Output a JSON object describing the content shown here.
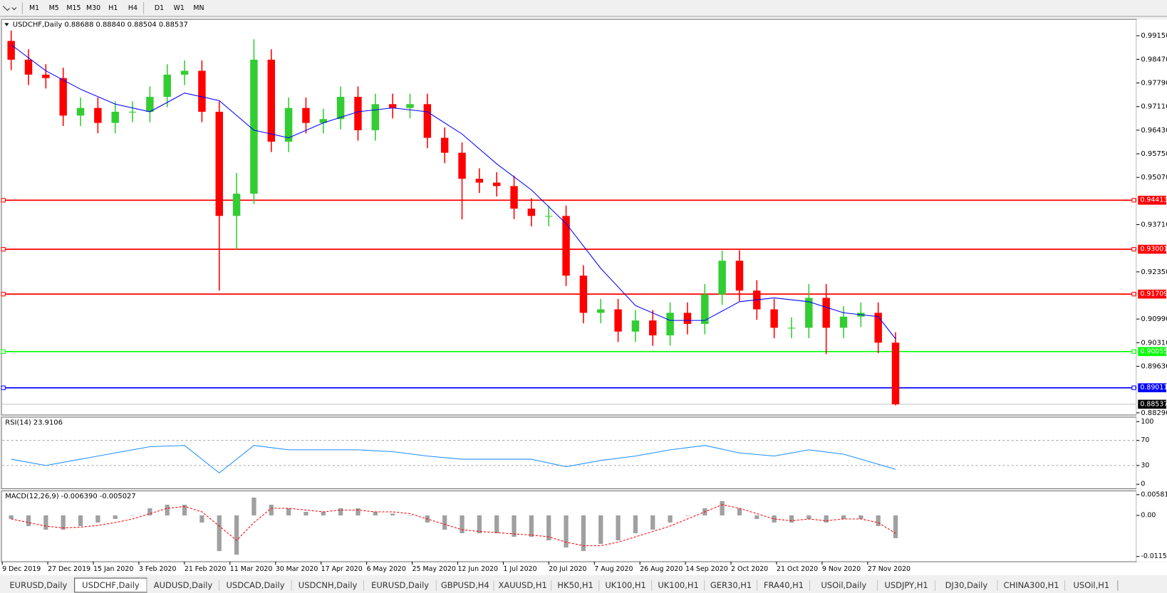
{
  "toolbar": [
    "M1",
    "M5",
    "M15",
    "M30",
    "H1",
    "H4",
    "D1",
    "W1",
    "MN"
  ],
  "tabs": [
    "EURUSD,Daily",
    "USDCHF,Daily",
    "AUDUSD,Daily",
    "USDCAD,Daily",
    "USDCNH,Daily",
    "EURUSD,Daily",
    "GBPUSD,H4",
    "XAUUSD,H1",
    "HK50,H1",
    "UK100,H1",
    "UK100,H1",
    "GER30,H1",
    "FRA40,H1",
    "USOil,Daily",
    "USDJPY,H1",
    "DJ30,Daily",
    "CHINA300,H1",
    "USOil,H1"
  ],
  "active_tab": 1,
  "chart_data": {
    "type": "candlestick",
    "title": "USDCHF,Daily  0.88688 0.88840 0.88504 0.88537",
    "up_color": "#32cd32",
    "down_color": "#ff0000",
    "open": [
      0.99,
      0.9846,
      0.9803,
      0.9793,
      0.9685,
      0.9707,
      0.9664,
      0.9696,
      0.9696,
      0.9739,
      0.9803,
      0.9814,
      0.9696,
      0.9396,
      0.946,
      0.9846,
      0.961,
      0.9707,
      0.9664,
      0.9675,
      0.9739,
      0.9643,
      0.9718,
      0.9707,
      0.9718,
      0.9621,
      0.9578,
      0.9503,
      0.9492,
      0.9482,
      0.9417,
      0.9396,
      0.9396,
      0.9224,
      0.9117,
      0.9127,
      0.9063,
      0.9095,
      0.9052,
      0.9117,
      0.9085,
      0.917,
      0.9267,
      0.9181,
      0.9127,
      0.9074,
      0.9074,
      0.916,
      0.9074,
      0.9106,
      0.9117,
      0.9031
    ],
    "high": [
      0.993,
      0.9876,
      0.9833,
      0.9823,
      0.9737,
      0.9737,
      0.9726,
      0.9726,
      0.9769,
      0.9833,
      0.9844,
      0.9844,
      0.9726,
      0.952,
      0.9905,
      0.9876,
      0.9737,
      0.9737,
      0.9705,
      0.9769,
      0.9769,
      0.9748,
      0.9748,
      0.9748,
      0.9748,
      0.9651,
      0.9608,
      0.9533,
      0.9522,
      0.9512,
      0.9447,
      0.9426,
      0.9426,
      0.9254,
      0.9157,
      0.9157,
      0.9125,
      0.9125,
      0.9147,
      0.9147,
      0.92,
      0.9296,
      0.9297,
      0.9211,
      0.9157,
      0.9104,
      0.92,
      0.92,
      0.9136,
      0.9147,
      0.9147,
      0.9061
    ],
    "low": [
      0.9816,
      0.9773,
      0.9763,
      0.9655,
      0.9655,
      0.9634,
      0.9634,
      0.9666,
      0.9666,
      0.9709,
      0.9773,
      0.9666,
      0.9181,
      0.93,
      0.943,
      0.958,
      0.958,
      0.9634,
      0.9634,
      0.9645,
      0.9613,
      0.9613,
      0.9677,
      0.9677,
      0.9591,
      0.9548,
      0.9386,
      0.9462,
      0.9452,
      0.9387,
      0.9366,
      0.9366,
      0.9194,
      0.9087,
      0.9087,
      0.9033,
      0.9033,
      0.9022,
      0.9022,
      0.9055,
      0.9055,
      0.914,
      0.9151,
      0.9097,
      0.9044,
      0.9044,
      0.9044,
      0.8998,
      0.9044,
      0.9076,
      0.9001,
      0.88504
    ],
    "close": [
      0.9846,
      0.9803,
      0.9793,
      0.9685,
      0.9707,
      0.9664,
      0.9696,
      0.9696,
      0.9739,
      0.9803,
      0.9814,
      0.9696,
      0.9396,
      0.946,
      0.9846,
      0.961,
      0.9707,
      0.9664,
      0.9675,
      0.9739,
      0.9643,
      0.9718,
      0.9707,
      0.9718,
      0.9621,
      0.9578,
      0.9503,
      0.9492,
      0.9482,
      0.9417,
      0.9396,
      0.9396,
      0.9224,
      0.9117,
      0.9127,
      0.9063,
      0.9095,
      0.9052,
      0.9117,
      0.9085,
      0.917,
      0.9267,
      0.9181,
      0.9127,
      0.9074,
      0.9074,
      0.916,
      0.9074,
      0.9106,
      0.9117,
      0.9031,
      0.88537
    ],
    "ma": {
      "color": "#0000ff",
      "x": [
        0,
        2,
        4,
        6,
        8,
        10,
        12,
        14,
        16,
        18,
        20,
        22,
        24,
        26,
        28,
        30,
        32,
        34,
        36,
        38,
        40,
        42,
        44,
        46,
        48,
        50,
        51
      ],
      "values": [
        0.9889,
        0.9814,
        0.9761,
        0.9718,
        0.9696,
        0.975,
        0.9728,
        0.9643,
        0.9621,
        0.9664,
        0.9696,
        0.9707,
        0.9696,
        0.9632,
        0.9546,
        0.9471,
        0.9374,
        0.9245,
        0.9138,
        0.9095,
        0.9095,
        0.9149,
        0.916,
        0.9149,
        0.9117,
        0.9106,
        0.9042
      ]
    },
    "levels": [
      {
        "value": 0.94413,
        "color": "#ff0000"
      },
      {
        "value": 0.93001,
        "color": "#ff0000"
      },
      {
        "value": 0.91709,
        "color": "#ff0000"
      },
      {
        "value": 0.90055,
        "color": "#00ff00"
      },
      {
        "value": 0.89011,
        "color": "#0000ff"
      }
    ],
    "last_price": 0.88537,
    "ylim": [
      0.8825,
      0.996
    ],
    "yticks": [
      {
        "value": 0.9915,
        "label": "0.99150"
      },
      {
        "value": 0.9847,
        "label": "0.98470"
      },
      {
        "value": 0.9779,
        "label": "0.97790"
      },
      {
        "value": 0.9711,
        "label": "0.97110"
      },
      {
        "value": 0.9643,
        "label": "0.96430"
      },
      {
        "value": 0.9575,
        "label": "0.95750"
      },
      {
        "value": 0.9507,
        "label": "0.95070"
      },
      {
        "value": 0.9371,
        "label": "0.93710"
      },
      {
        "value": 0.9235,
        "label": "0.92350"
      },
      {
        "value": 0.9099,
        "label": "0.90990"
      },
      {
        "value": 0.9031,
        "label": "0.90310"
      },
      {
        "value": 0.8963,
        "label": "0.89630"
      },
      {
        "value": 0.8829,
        "label": "0.88290"
      }
    ],
    "x_labels": [
      "9 Dec 2019",
      "27 Dec 2019",
      "15 Jan 2020",
      "3 Feb 2020",
      "21 Feb 2020",
      "11 Mar 2020",
      "30 Mar 2020",
      "17 Apr 2020",
      "6 May 2020",
      "25 May 2020",
      "12 Jun 2020",
      "1 Jul 2020",
      "20 Jul 2020",
      "7 Aug 2020",
      "26 Aug 2020",
      "14 Sep 2020",
      "2 Oct 2020",
      "21 Oct 2020",
      "9 Nov 2020",
      "27 Nov 2020"
    ],
    "rsi": {
      "title": "RSI(14) 23.9106",
      "color": "#1e90ff",
      "ylim": [
        0,
        100
      ],
      "yticks": [
        0,
        30,
        70,
        100
      ],
      "x": [
        0,
        2,
        4,
        6,
        8,
        10,
        12,
        14,
        16,
        18,
        20,
        22,
        24,
        26,
        28,
        30,
        32,
        34,
        36,
        38,
        40,
        42,
        44,
        46,
        48,
        50,
        51
      ],
      "values": [
        40,
        30,
        40,
        50,
        60,
        62,
        18,
        62,
        55,
        55,
        55,
        52,
        45,
        40,
        40,
        40,
        28,
        38,
        45,
        55,
        62,
        50,
        45,
        55,
        48,
        32,
        23.9106
      ]
    },
    "macd": {
      "title": "MACD(12,26,9) -0.006390 -0.005027",
      "hist_color": "#a0a0a0",
      "signal_color": "#ff0000",
      "ylim": [
        -0.01277,
        0.00665
      ],
      "yticks": [
        0.005818,
        {
          "value": 0,
          "label": "0.00"
        },
        -0.011514
      ],
      "hist": [
        -0.001,
        -0.003,
        -0.004,
        -0.004,
        -0.003,
        -0.002,
        -0.001,
        0,
        0.002,
        0.003,
        0.003,
        -0.002,
        -0.01,
        -0.011,
        0.005,
        0.003,
        0.002,
        0.001,
        0.001,
        0.002,
        0.002,
        0.001,
        0.0005,
        0,
        -0.002,
        -0.004,
        -0.005,
        -0.005,
        -0.005,
        -0.006,
        -0.006,
        -0.007,
        -0.009,
        -0.01,
        -0.008,
        -0.007,
        -0.005,
        -0.004,
        -0.002,
        0,
        0.002,
        0.004,
        0.002,
        -0.001,
        -0.002,
        -0.002,
        -0.001,
        -0.002,
        -0.001,
        -0.001,
        -0.003,
        -0.00639
      ],
      "signal": [
        -0.001,
        -0.002,
        -0.003,
        -0.0035,
        -0.0033,
        -0.0028,
        -0.002,
        -0.001,
        0.0005,
        0.002,
        0.0025,
        0.001,
        -0.003,
        -0.007,
        -0.002,
        0.002,
        0.002,
        0.0015,
        0.001,
        0.0015,
        0.0015,
        0.001,
        0.001,
        0.0005,
        -0.001,
        -0.0025,
        -0.004,
        -0.0045,
        -0.0048,
        -0.0052,
        -0.0055,
        -0.006,
        -0.0075,
        -0.0085,
        -0.0085,
        -0.0075,
        -0.006,
        -0.0045,
        -0.003,
        -0.001,
        0.001,
        0.003,
        0.002,
        0.0005,
        -0.001,
        -0.0015,
        -0.001,
        -0.0015,
        -0.001,
        -0.001,
        -0.002,
        -0.005027
      ]
    }
  }
}
